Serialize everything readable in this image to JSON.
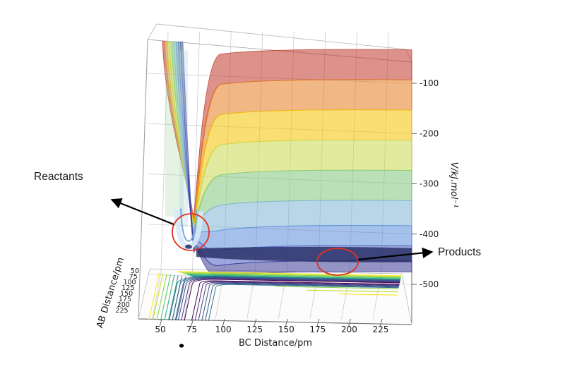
{
  "figure": {
    "background_color": "#ffffff",
    "annotations": {
      "reactants_label": "Reactants",
      "products_label": "Products",
      "circle_color": "#e0301e",
      "arrow_color": "#000000"
    }
  },
  "chart_data": {
    "type": "surface",
    "closest_enum_type": "heatmap",
    "plot_style": "3D potential-energy surface for A+BC reaction with projected 2D contour map beneath",
    "grid": true,
    "x": {
      "label": "BC Distance/pm",
      "ticks": [
        50,
        75,
        100,
        125,
        150,
        175,
        200,
        225
      ],
      "range_pm": [
        40,
        240
      ]
    },
    "y": {
      "label": "AB Distance/pm",
      "ticks": [
        50,
        75,
        100,
        125,
        150,
        175,
        200,
        225
      ],
      "range_pm": [
        40,
        240
      ]
    },
    "z": {
      "label": "V/kJ.mol⁻¹",
      "ticks": [
        -100,
        -200,
        -300,
        -400,
        -500
      ],
      "range": [
        -560,
        -20
      ]
    },
    "surface_levels": [
      -20,
      -80,
      -140,
      -200,
      -260,
      -320,
      -370,
      -410,
      -440,
      -462
    ],
    "surface_colors": [
      "#c0392b",
      "#e67e22",
      "#f3c300",
      "#c8d94e",
      "#82c77d",
      "#7fb3d5",
      "#5b8dd9",
      "#4a5fc1",
      "#3b3b98"
    ],
    "contour_colors": {
      "wall": [
        "#fde725",
        "#c2df23",
        "#86d549",
        "#52c569",
        "#2ab07f",
        "#1e9c89",
        "#25838e",
        "#2d708e"
      ],
      "valley": [
        "#2d708e",
        "#355f8d",
        "#3b518b",
        "#424086",
        "#462f7c",
        "#440154"
      ],
      "outer_partials": [
        "#86d549",
        "#c2df23",
        "#fde725"
      ]
    },
    "features": {
      "reactants_well": {
        "approx_BC_pm": 75,
        "approx_V": -430,
        "description": "Deep narrow well at small BC distance (A + BC reactants)"
      },
      "products_valley": {
        "approx_BC_pm": 200,
        "approx_V": -455,
        "description": "Broad flat valley floor at large BC distance (AB + C products)"
      },
      "repulsive_wall": "Potential rises steeply for BC < 60 pm and AB < 60 pm"
    },
    "annotation_points": [
      {
        "label": "Reactants",
        "circled_region": "minimum of the reactant valley near BC ≈ 75 pm"
      },
      {
        "label": "Products",
        "circled_region": "product valley floor near BC ≈ 200 pm"
      }
    ]
  }
}
